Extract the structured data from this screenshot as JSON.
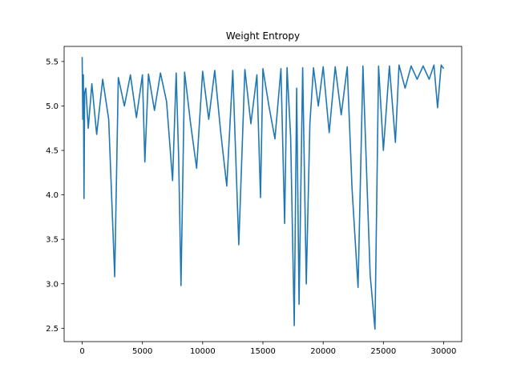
{
  "chart_data": {
    "type": "line",
    "title": "Weight Entropy",
    "xlabel": "",
    "ylabel": "",
    "xlim": [
      -1500,
      31500
    ],
    "ylim": [
      2.35,
      5.67
    ],
    "grid": false,
    "legend": "none",
    "color": "#1f77b4",
    "xticks": [
      0,
      5000,
      10000,
      15000,
      20000,
      25000,
      30000
    ],
    "xtick_labels": [
      "0",
      "5000",
      "10000",
      "15000",
      "20000",
      "25000",
      "30000"
    ],
    "yticks": [
      2.5,
      3.0,
      3.5,
      4.0,
      4.5,
      5.0,
      5.5
    ],
    "ytick_labels": [
      "2.5",
      "3.0",
      "3.5",
      "4.0",
      "4.5",
      "5.0",
      "5.5"
    ],
    "series": [
      {
        "x": [
          0,
          50,
          100,
          150,
          200,
          300,
          500,
          800,
          1200,
          1700,
          2200,
          2700,
          3000,
          3500,
          4000,
          4500,
          5000,
          5200,
          5500,
          6000,
          6500,
          7000,
          7500,
          7800,
          8000,
          8200,
          8500,
          9000,
          9500,
          10000,
          10500,
          11000,
          11500,
          12000,
          12500,
          13000,
          13500,
          14000,
          14500,
          14800,
          15000,
          15500,
          16000,
          16500,
          16800,
          17000,
          17300,
          17600,
          17800,
          18000,
          18300,
          18600,
          18900,
          19200,
          19600,
          20000,
          20500,
          21000,
          21500,
          22000,
          22400,
          22900,
          23300,
          23900,
          24300,
          24600,
          25000,
          25500,
          26000,
          26300,
          26800,
          27300,
          27800,
          28300,
          28800,
          29200,
          29500,
          29800,
          30000
        ],
        "values": [
          5.55,
          4.85,
          5.35,
          3.96,
          5.15,
          5.2,
          4.75,
          5.25,
          4.68,
          5.3,
          4.85,
          3.08,
          5.32,
          5.0,
          5.35,
          4.87,
          5.35,
          4.37,
          5.36,
          4.95,
          5.37,
          5.05,
          4.16,
          5.37,
          4.45,
          2.98,
          5.38,
          4.8,
          4.3,
          5.39,
          4.85,
          5.4,
          4.7,
          4.1,
          5.4,
          3.44,
          5.41,
          4.8,
          5.35,
          3.97,
          5.42,
          5.0,
          4.63,
          5.42,
          3.68,
          5.43,
          4.65,
          2.53,
          5.2,
          2.77,
          5.43,
          3.0,
          4.8,
          5.43,
          5.0,
          5.44,
          4.7,
          5.44,
          4.9,
          5.44,
          4.07,
          2.96,
          5.45,
          3.1,
          2.49,
          5.45,
          4.5,
          5.45,
          4.59,
          5.46,
          5.2,
          5.45,
          5.3,
          5.45,
          5.3,
          5.46,
          4.98,
          5.46,
          5.42
        ]
      }
    ]
  }
}
